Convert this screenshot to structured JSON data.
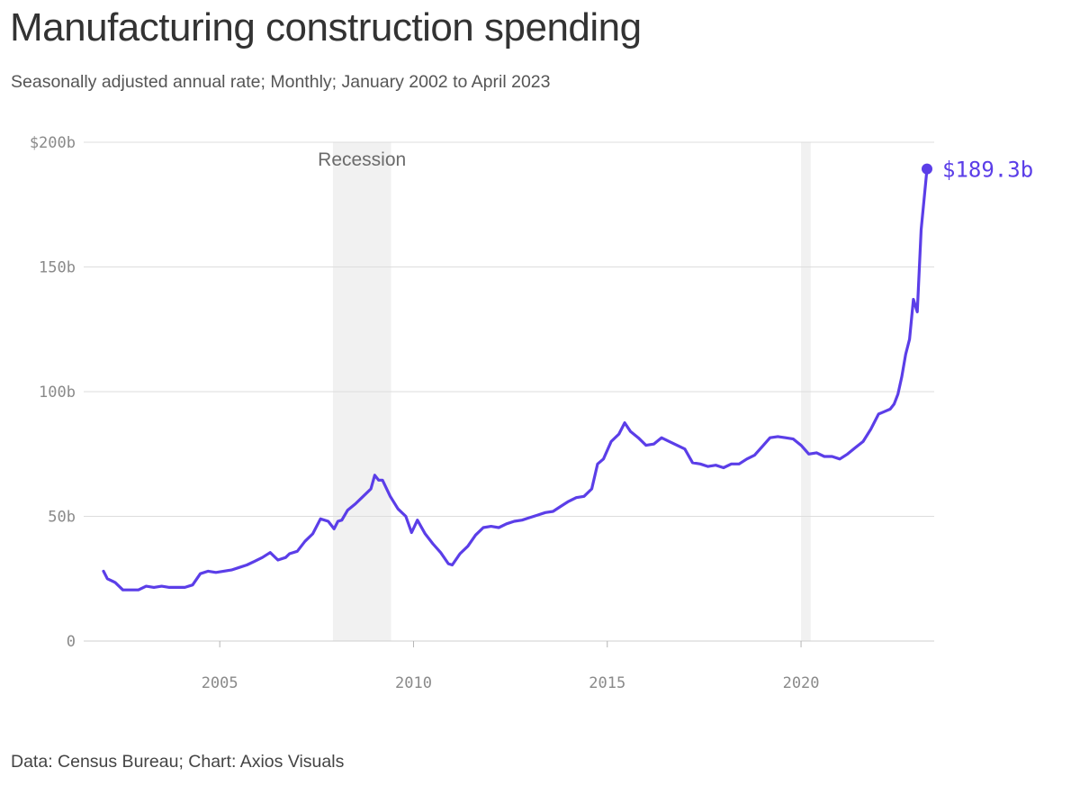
{
  "title": "Manufacturing construction spending",
  "subtitle": "Seasonally adjusted annual rate; Monthly; January 2002 to April 2023",
  "source": "Data: Census Bureau; Chart: Axios Visuals",
  "colors": {
    "line": "#5b3ee8",
    "recession": "#f1f1f1",
    "grid": "#dddddd"
  },
  "chart_data": {
    "type": "line",
    "ylim": [
      0,
      200
    ],
    "xlim": [
      2002.0,
      2023.25
    ],
    "y_ticks": [
      {
        "value": 200,
        "label": "$200b"
      },
      {
        "value": 150,
        "label": "150b"
      },
      {
        "value": 100,
        "label": "100b"
      },
      {
        "value": 50,
        "label": "50b"
      },
      {
        "value": 0,
        "label": "0"
      }
    ],
    "x_ticks": [
      {
        "value": 2005,
        "label": "2005"
      },
      {
        "value": 2010,
        "label": "2010"
      },
      {
        "value": 2015,
        "label": "2015"
      },
      {
        "value": 2020,
        "label": "2020"
      }
    ],
    "recessions": [
      {
        "start": 2007.92,
        "end": 2009.42,
        "label": "Recession"
      },
      {
        "start": 2020.0,
        "end": 2020.25,
        "label": ""
      }
    ],
    "end_label": "$189.3b",
    "grid": true,
    "series": [
      {
        "x": [
          2002.0,
          2002.1,
          2002.3,
          2002.5,
          2002.7,
          2002.9,
          2003.1,
          2003.3,
          2003.5,
          2003.7,
          2003.9,
          2004.1,
          2004.3,
          2004.5,
          2004.7,
          2004.9,
          2005.1,
          2005.3,
          2005.5,
          2005.7,
          2005.9,
          2006.1,
          2006.3,
          2006.5,
          2006.7,
          2006.8,
          2007.0,
          2007.2,
          2007.4,
          2007.6,
          2007.8,
          2007.95,
          2008.05,
          2008.15,
          2008.3,
          2008.5,
          2008.7,
          2008.9,
          2009.0,
          2009.1,
          2009.2,
          2009.4,
          2009.6,
          2009.8,
          2009.95,
          2010.1,
          2010.3,
          2010.5,
          2010.7,
          2010.9,
          2011.0,
          2011.2,
          2011.4,
          2011.6,
          2011.8,
          2012.0,
          2012.2,
          2012.4,
          2012.6,
          2012.8,
          2013.0,
          2013.2,
          2013.4,
          2013.6,
          2013.8,
          2014.0,
          2014.2,
          2014.4,
          2014.6,
          2014.75,
          2014.9,
          2015.1,
          2015.3,
          2015.45,
          2015.6,
          2015.8,
          2016.0,
          2016.2,
          2016.4,
          2016.6,
          2016.8,
          2017.0,
          2017.2,
          2017.4,
          2017.6,
          2017.8,
          2018.0,
          2018.2,
          2018.4,
          2018.6,
          2018.8,
          2019.0,
          2019.2,
          2019.4,
          2019.6,
          2019.8,
          2020.0,
          2020.2,
          2020.4,
          2020.6,
          2020.8,
          2021.0,
          2021.2,
          2021.4,
          2021.6,
          2021.8,
          2022.0,
          2022.15,
          2022.3,
          2022.4,
          2022.5,
          2022.6,
          2022.7,
          2022.8,
          2022.9,
          2023.0,
          2023.1,
          2023.25
        ],
        "y": [
          28,
          25,
          23.5,
          20.5,
          20.5,
          20.5,
          22,
          21.5,
          22,
          21.5,
          21.5,
          21.5,
          22.5,
          27,
          28,
          27.5,
          28,
          28.5,
          29.5,
          30.5,
          32,
          33.5,
          35.5,
          32.5,
          33.5,
          35,
          36,
          40,
          43,
          49,
          48,
          45,
          48,
          48.5,
          52.5,
          55,
          58,
          61,
          66.5,
          64.5,
          64.5,
          58,
          53,
          50,
          43.5,
          48.5,
          43,
          39,
          35.5,
          31,
          30.5,
          35,
          38,
          42.5,
          45.5,
          46,
          45.5,
          47,
          48,
          48.5,
          49.5,
          50.5,
          51.5,
          52,
          54,
          56,
          57.5,
          58,
          61,
          71,
          73,
          80,
          83,
          87.5,
          84,
          81.5,
          78.5,
          79,
          81.5,
          80,
          78.5,
          77,
          71.5,
          71,
          70,
          70.5,
          69.5,
          71,
          71,
          73,
          74.5,
          78,
          81.5,
          82,
          81.5,
          81,
          78.5,
          75,
          75.5,
          74,
          74,
          73,
          75,
          77.5,
          80,
          85,
          91,
          92,
          93,
          95,
          99,
          106,
          115,
          121,
          137,
          132,
          165,
          189.3
        ]
      }
    ]
  }
}
